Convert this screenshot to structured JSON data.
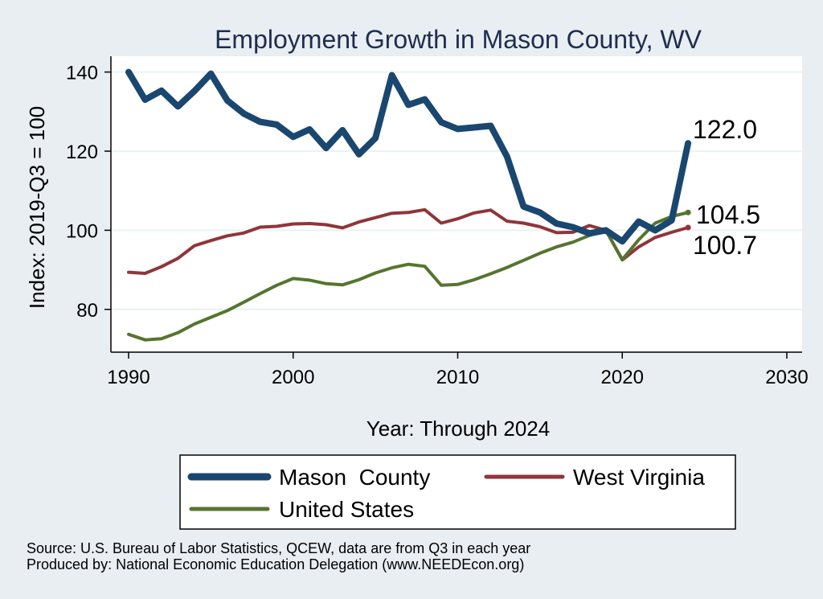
{
  "chart_data": {
    "type": "line",
    "title": "Employment Growth in Mason County, WV",
    "xlabel": "Year: Through 2024",
    "ylabel": "Index: 2019-Q3 = 100",
    "xlim": [
      1990,
      2030
    ],
    "ylim": [
      72,
      142
    ],
    "xticks": [
      1990,
      2000,
      2010,
      2020,
      2030
    ],
    "yticks": [
      80,
      100,
      120,
      140
    ],
    "grid": true,
    "legend_position": "bottom",
    "x": [
      1990,
      1991,
      1992,
      1993,
      1994,
      1995,
      1996,
      1997,
      1998,
      1999,
      2000,
      2001,
      2002,
      2003,
      2004,
      2005,
      2006,
      2007,
      2008,
      2009,
      2010,
      2011,
      2012,
      2013,
      2014,
      2015,
      2016,
      2017,
      2018,
      2019,
      2020,
      2021,
      2022,
      2023,
      2024
    ],
    "series": [
      {
        "name": "Mason  County",
        "color": "#1a476f",
        "end_label": "122.0",
        "values": [
          140.0,
          133.0,
          135.3,
          131.3,
          135.2,
          139.6,
          132.8,
          129.5,
          127.4,
          126.7,
          123.6,
          125.5,
          120.8,
          125.3,
          119.2,
          123.3,
          139.2,
          131.7,
          133.1,
          127.3,
          125.6,
          126.0,
          126.4,
          118.6,
          106.0,
          104.5,
          101.7,
          100.8,
          99.2,
          100.0,
          97.2,
          102.2,
          100.0,
          102.5,
          122.0
        ]
      },
      {
        "name": "West Virginia",
        "color": "#90353b",
        "end_label": "100.7",
        "values": [
          89.4,
          89.1,
          90.8,
          92.9,
          96.1,
          97.4,
          98.6,
          99.3,
          100.8,
          101.0,
          101.6,
          101.7,
          101.4,
          100.6,
          102.1,
          103.2,
          104.3,
          104.5,
          105.2,
          101.8,
          102.9,
          104.4,
          105.1,
          102.3,
          101.8,
          100.9,
          99.4,
          99.5,
          101.2,
          100.0,
          92.5,
          95.8,
          98.2,
          99.5,
          100.7
        ]
      },
      {
        "name": "United States",
        "color": "#55752f",
        "end_label": "104.5",
        "values": [
          73.7,
          72.3,
          72.6,
          74.1,
          76.3,
          78.0,
          79.7,
          81.8,
          84.0,
          86.1,
          87.8,
          87.4,
          86.5,
          86.2,
          87.5,
          89.2,
          90.5,
          91.4,
          90.9,
          86.1,
          86.3,
          87.5,
          89.0,
          90.6,
          92.4,
          94.2,
          95.8,
          97.0,
          98.7,
          100.0,
          92.6,
          97.6,
          101.8,
          103.5,
          104.5
        ]
      }
    ],
    "source_lines": [
      "Source: U.S. Bureau of Labor Statistics, QCEW, data are from Q3 in each year",
      "Produced by: National Economic Education Delegation (www.NEEDEcon.org)"
    ]
  }
}
